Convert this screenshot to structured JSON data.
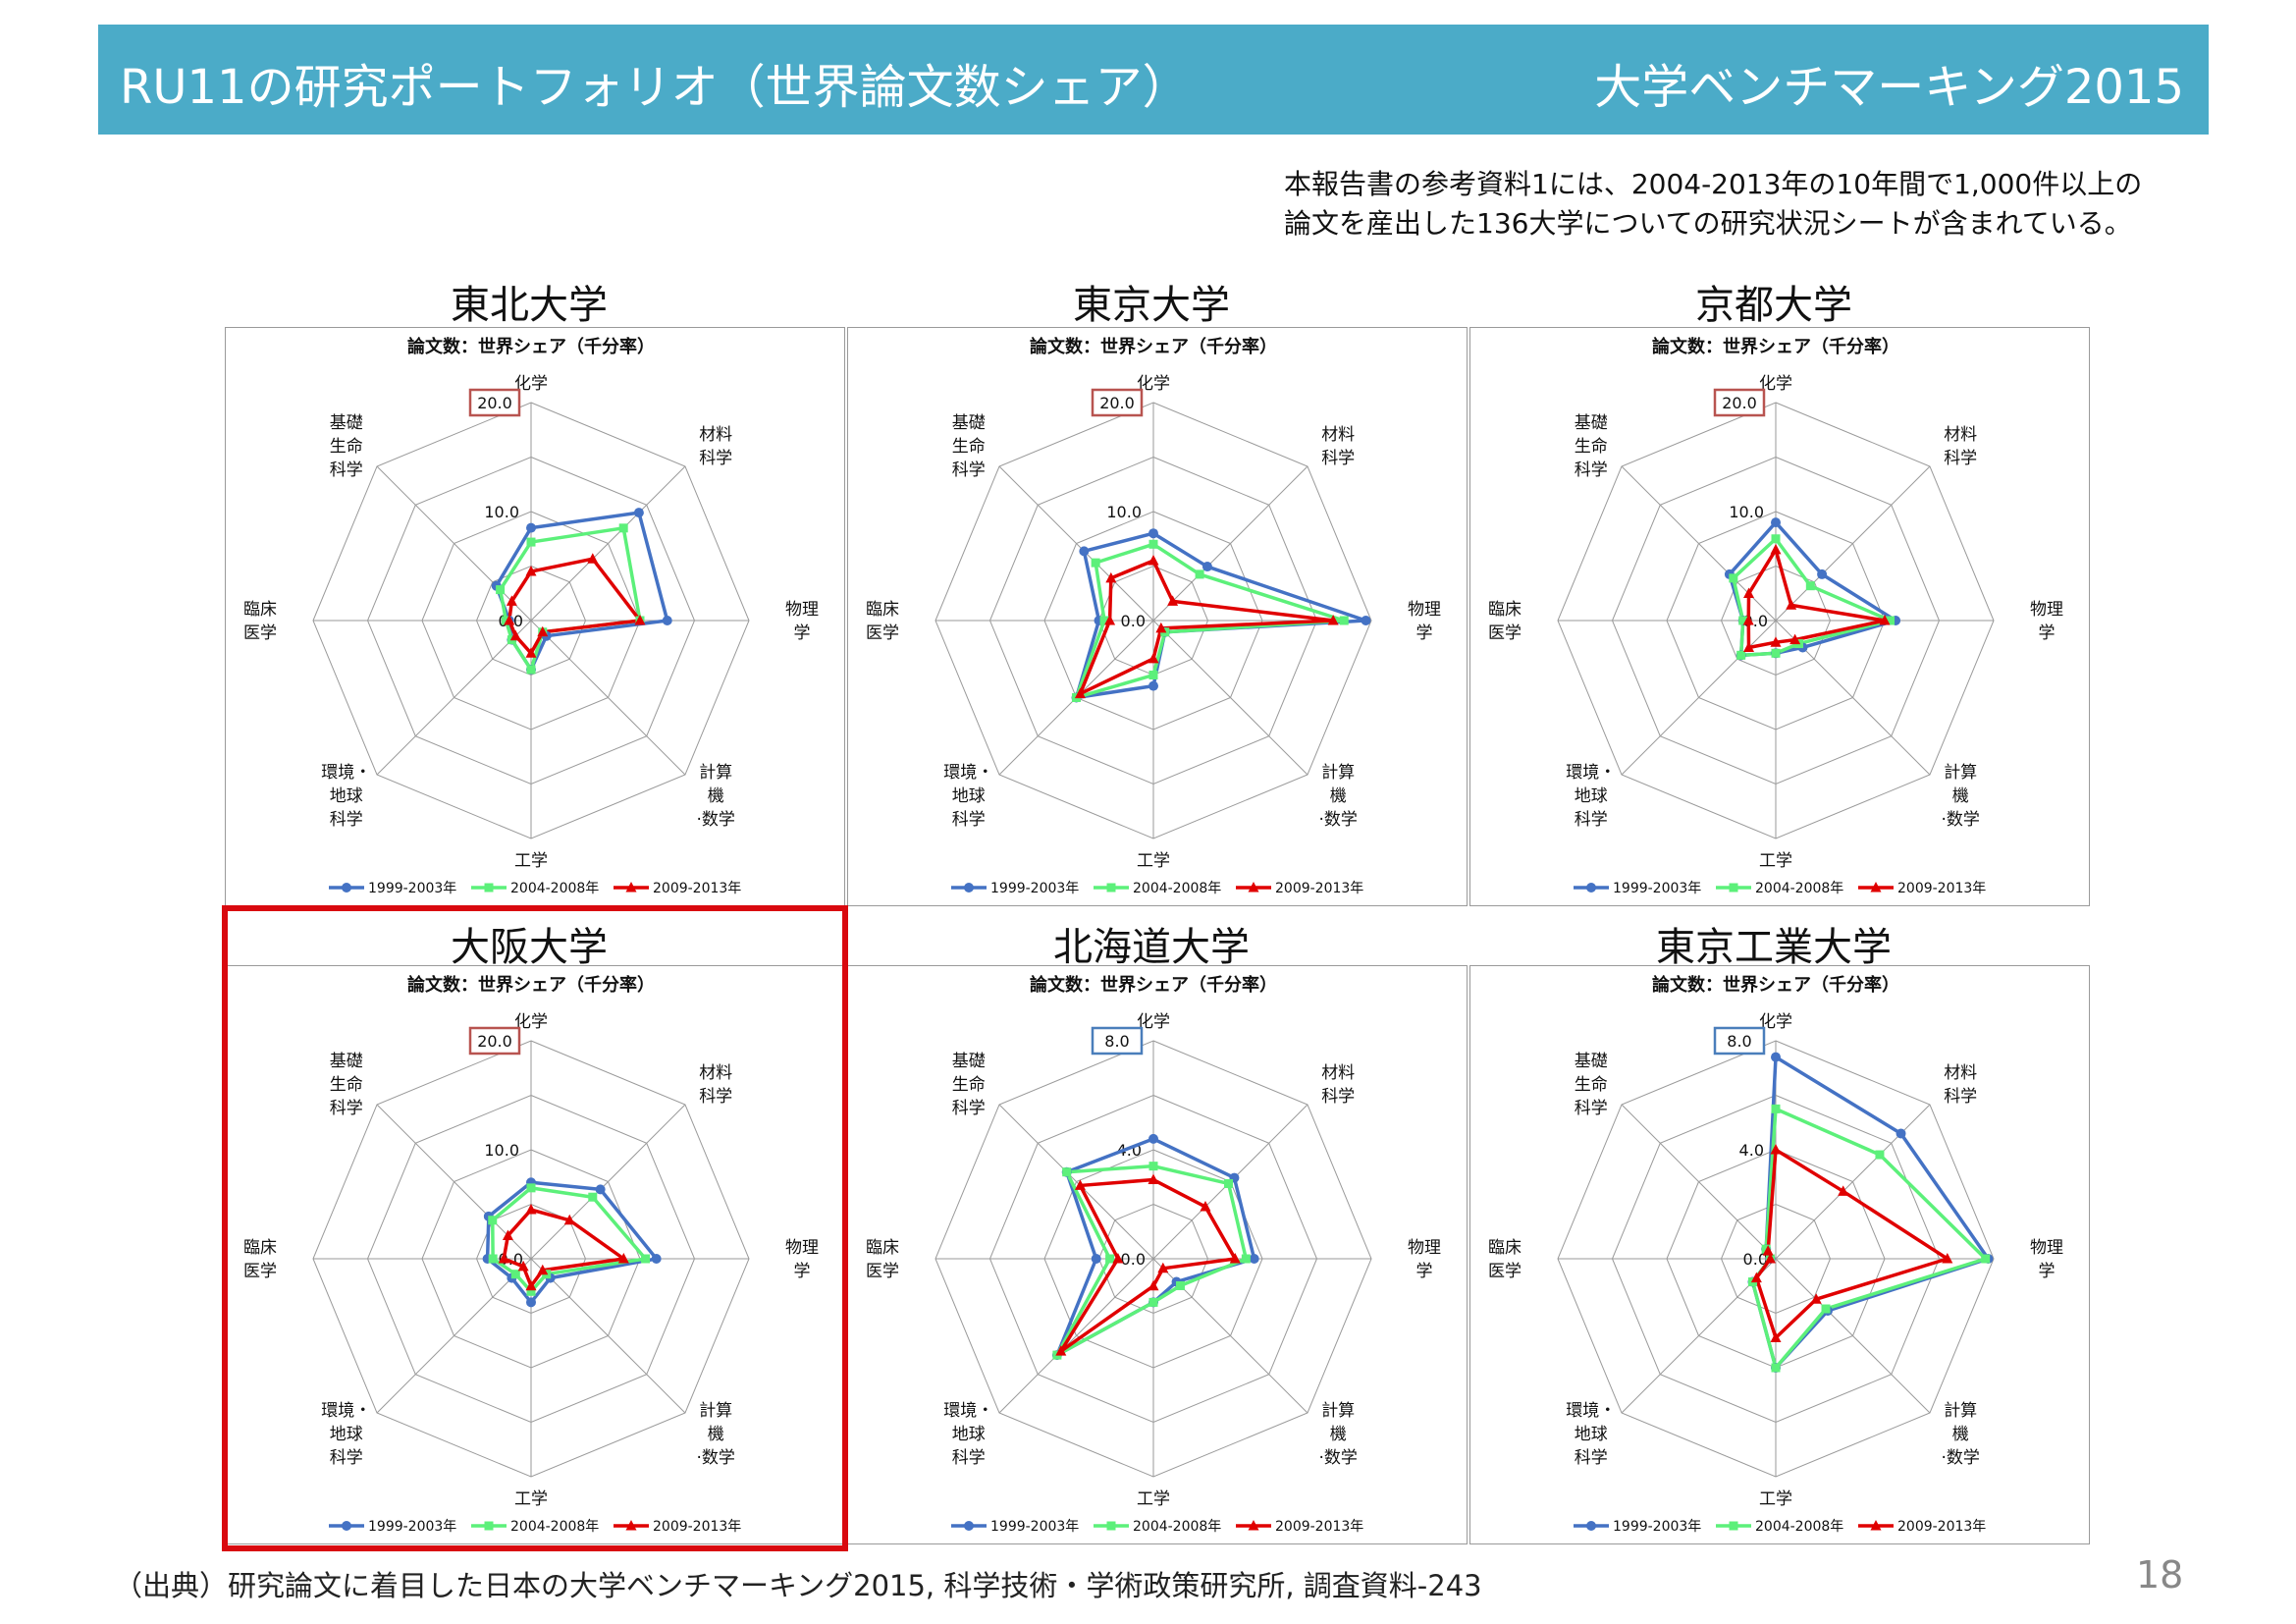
{
  "header": {
    "title": "RU11の研究ポートフォリオ（世界論文数シェア）",
    "subtitle": "大学ベンチマーキング2015"
  },
  "note": {
    "line1": "本報告書の参考資料1には、2004-2013年の10年間で1,000件以上の",
    "line2": "論文を産出した136大学についての研究状況シートが含まれている。"
  },
  "source": "（出典）研究論文に着目した日本の大学ベンチマーキング2015, 科学技術・学術政策研究所, 調査資料-243",
  "page_number": "18",
  "colors": {
    "header_bg": "#4babc8",
    "highlight": "#d9090f",
    "max_box_red": "#b85450",
    "max_box_blue": "#4a7ebb"
  },
  "chart_data": [
    {
      "type": "radar",
      "university": "東北大学",
      "title": "論文数：世界シェア（千分率）",
      "categories": [
        "化学",
        "材料科学",
        "物理学",
        "計算機・数学",
        "工学",
        "環境・地球科学",
        "臨床医学",
        "基礎生命科学"
      ],
      "category_lines": [
        [
          "化学"
        ],
        [
          "材料",
          "科学"
        ],
        [
          "物理",
          "学"
        ],
        [
          "計算",
          "機",
          "·数学"
        ],
        [
          "工学"
        ],
        [
          "環境・",
          "地球",
          "科学"
        ],
        [
          "臨床",
          "医学"
        ],
        [
          "基礎",
          "生命",
          "科学"
        ]
      ],
      "rmax": 20,
      "ticks": [
        "0.0",
        "10.0",
        "20.0"
      ],
      "max_box_color": "#b85450",
      "series": [
        {
          "name": "1999-2003年",
          "color": "#4472c4",
          "marker": "circle",
          "values": [
            8.5,
            14.0,
            12.5,
            2.0,
            4.5,
            2.5,
            2.0,
            4.5
          ]
        },
        {
          "name": "2004-2008年",
          "color": "#5cf07a",
          "marker": "square",
          "values": [
            7.2,
            12.0,
            10.0,
            1.5,
            4.5,
            2.5,
            2.3,
            4.0
          ]
        },
        {
          "name": "2009-2013年",
          "color": "#e00000",
          "marker": "triangle",
          "values": [
            4.5,
            8.0,
            10.0,
            1.5,
            3.0,
            2.0,
            2.0,
            2.5
          ]
        }
      ]
    },
    {
      "type": "radar",
      "university": "東京大学",
      "title": "論文数：世界シェア（千分率）",
      "categories": [
        "化学",
        "材料科学",
        "物理学",
        "計算機・数学",
        "工学",
        "環境・地球科学",
        "臨床医学",
        "基礎生命科学"
      ],
      "category_lines": [
        [
          "化学"
        ],
        [
          "材料",
          "科学"
        ],
        [
          "物理",
          "学"
        ],
        [
          "計算",
          "機",
          "·数学"
        ],
        [
          "工学"
        ],
        [
          "環境・",
          "地球",
          "科学"
        ],
        [
          "臨床",
          "医学"
        ],
        [
          "基礎",
          "生命",
          "科学"
        ]
      ],
      "rmax": 20,
      "ticks": [
        "0.0",
        "10.0",
        "20.0"
      ],
      "max_box_color": "#b85450",
      "series": [
        {
          "name": "1999-2003年",
          "color": "#4472c4",
          "marker": "circle",
          "values": [
            8.0,
            7.0,
            19.5,
            1.5,
            6.0,
            10.0,
            5.0,
            9.0
          ]
        },
        {
          "name": "2004-2008年",
          "color": "#5cf07a",
          "marker": "square",
          "values": [
            7.0,
            6.0,
            17.5,
            1.5,
            5.0,
            10.0,
            4.5,
            7.5
          ]
        },
        {
          "name": "2009-2013年",
          "color": "#e00000",
          "marker": "triangle",
          "values": [
            5.5,
            2.5,
            16.5,
            1.0,
            3.5,
            9.5,
            4.0,
            5.5
          ]
        }
      ]
    },
    {
      "type": "radar",
      "university": "京都大学",
      "title": "論文数：世界シェア（千分率）",
      "categories": [
        "化学",
        "材料科学",
        "物理学",
        "計算機・数学",
        "工学",
        "環境・地球科学",
        "臨床医学",
        "基礎生命科学"
      ],
      "category_lines": [
        [
          "化学"
        ],
        [
          "材料",
          "科学"
        ],
        [
          "物理",
          "学"
        ],
        [
          "計算",
          "機",
          "·数学"
        ],
        [
          "工学"
        ],
        [
          "環境・",
          "地球",
          "科学"
        ],
        [
          "臨床",
          "医学"
        ],
        [
          "基礎",
          "生命",
          "科学"
        ]
      ],
      "rmax": 20,
      "ticks": [
        "0.0",
        "10.0",
        "20.0"
      ],
      "max_box_color": "#b85450",
      "series": [
        {
          "name": "1999-2003年",
          "color": "#4472c4",
          "marker": "circle",
          "values": [
            9.0,
            6.0,
            11.0,
            3.5,
            3.0,
            4.5,
            3.0,
            6.0
          ]
        },
        {
          "name": "2004-2008年",
          "color": "#5cf07a",
          "marker": "square",
          "values": [
            7.5,
            4.5,
            10.5,
            3.0,
            3.0,
            4.5,
            3.0,
            5.5
          ]
        },
        {
          "name": "2009-2013年",
          "color": "#e00000",
          "marker": "triangle",
          "values": [
            6.5,
            2.0,
            10.0,
            2.5,
            2.0,
            3.5,
            2.5,
            3.5
          ]
        }
      ]
    },
    {
      "type": "radar",
      "university": "大阪大学",
      "title": "論文数：世界シェア（千分率）",
      "categories": [
        "化学",
        "材料科学",
        "物理学",
        "計算機・数学",
        "工学",
        "環境・地球科学",
        "臨床医学",
        "基礎生命科学"
      ],
      "category_lines": [
        [
          "化学"
        ],
        [
          "材料",
          "科学"
        ],
        [
          "物理",
          "学"
        ],
        [
          "計算",
          "機",
          "·数学"
        ],
        [
          "工学"
        ],
        [
          "環境・",
          "地球",
          "科学"
        ],
        [
          "臨床",
          "医学"
        ],
        [
          "基礎",
          "生命",
          "科学"
        ]
      ],
      "rmax": 20,
      "ticks": [
        "0.0",
        "10.0",
        "20.0"
      ],
      "max_box_color": "#b85450",
      "series": [
        {
          "name": "1999-2003年",
          "color": "#4472c4",
          "marker": "circle",
          "values": [
            7.0,
            9.0,
            11.5,
            2.5,
            4.0,
            2.5,
            4.0,
            5.5
          ]
        },
        {
          "name": "2004-2008年",
          "color": "#5cf07a",
          "marker": "square",
          "values": [
            6.5,
            8.0,
            10.5,
            2.0,
            3.0,
            2.0,
            3.5,
            5.0
          ]
        },
        {
          "name": "2009-2013年",
          "color": "#e00000",
          "marker": "triangle",
          "values": [
            4.5,
            5.0,
            8.5,
            1.5,
            2.5,
            1.0,
            2.5,
            3.0
          ]
        }
      ]
    },
    {
      "type": "radar",
      "university": "北海道大学",
      "title": "論文数：世界シェア（千分率）",
      "categories": [
        "化学",
        "材料科学",
        "物理学",
        "計算機・数学",
        "工学",
        "環境・地球科学",
        "臨床医学",
        "基礎生命科学"
      ],
      "category_lines": [
        [
          "化学"
        ],
        [
          "材料",
          "科学"
        ],
        [
          "物理",
          "学"
        ],
        [
          "計算",
          "機",
          "·数学"
        ],
        [
          "工学"
        ],
        [
          "環境・",
          "地球",
          "科学"
        ],
        [
          "臨床",
          "医学"
        ],
        [
          "基礎",
          "生命",
          "科学"
        ]
      ],
      "rmax": 8,
      "ticks": [
        "0.0",
        "4.0",
        "8.0"
      ],
      "max_box_color": "#4a7ebb",
      "series": [
        {
          "name": "1999-2003年",
          "color": "#4472c4",
          "marker": "circle",
          "values": [
            4.4,
            4.2,
            3.7,
            1.2,
            1.6,
            5.0,
            2.1,
            4.5
          ]
        },
        {
          "name": "2004-2008年",
          "color": "#5cf07a",
          "marker": "square",
          "values": [
            3.4,
            3.9,
            3.4,
            1.4,
            1.6,
            5.0,
            1.6,
            4.5
          ]
        },
        {
          "name": "2009-2013年",
          "color": "#e00000",
          "marker": "triangle",
          "values": [
            2.9,
            2.7,
            3.0,
            0.5,
            1.0,
            4.8,
            1.3,
            3.8
          ]
        }
      ]
    },
    {
      "type": "radar",
      "university": "東京工業大学",
      "title": "論文数：世界シェア（千分率）",
      "categories": [
        "化学",
        "材料科学",
        "物理学",
        "計算機・数学",
        "工学",
        "環境・地球科学",
        "臨床医学",
        "基礎生命科学"
      ],
      "category_lines": [
        [
          "化学"
        ],
        [
          "材料",
          "科学"
        ],
        [
          "物理",
          "学"
        ],
        [
          "計算",
          "機",
          "·数学"
        ],
        [
          "工学"
        ],
        [
          "環境・",
          "地球",
          "科学"
        ],
        [
          "臨床",
          "医学"
        ],
        [
          "基礎",
          "生命",
          "科学"
        ]
      ],
      "rmax": 8,
      "ticks": [
        "0.0",
        "4.0",
        "8.0"
      ],
      "max_box_color": "#4a7ebb",
      "series": [
        {
          "name": "1999-2003年",
          "color": "#4472c4",
          "marker": "circle",
          "values": [
            7.4,
            6.5,
            7.8,
            2.7,
            4.0,
            1.2,
            0.2,
            0.5
          ]
        },
        {
          "name": "2004-2008年",
          "color": "#5cf07a",
          "marker": "square",
          "values": [
            5.5,
            5.4,
            7.7,
            2.6,
            4.0,
            1.2,
            0.2,
            0.5
          ]
        },
        {
          "name": "2009-2013年",
          "color": "#e00000",
          "marker": "triangle",
          "values": [
            4.0,
            3.5,
            6.3,
            2.1,
            2.9,
            1.0,
            0.2,
            0.4
          ]
        }
      ]
    }
  ]
}
